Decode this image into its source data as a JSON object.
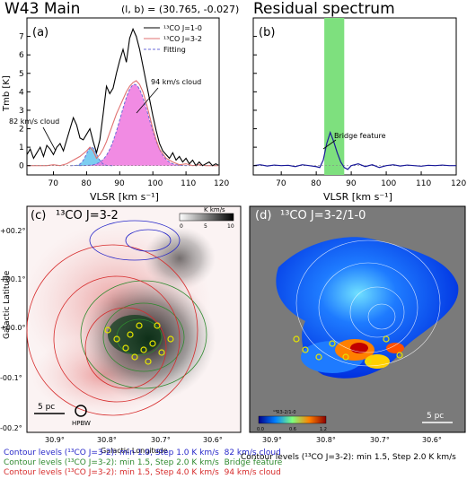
{
  "header": {
    "left_title": "W43 Main",
    "coords": "(l, b) = (30.765, -0.027)",
    "right_title": "Residual spectrum"
  },
  "chart_data": [
    {
      "type": "line",
      "panel": "(a)",
      "xlabel": "VLSR [km s⁻¹]",
      "ylabel": "Tmb [K]",
      "xlim": [
        62,
        120
      ],
      "ylim": [
        -0.5,
        8.0
      ],
      "xticks": [
        "70",
        "80",
        "90",
        "100",
        "110",
        "120"
      ],
      "yticks": [
        "0",
        "1",
        "2",
        "3",
        "4",
        "5",
        "6",
        "7"
      ],
      "legend": [
        "¹³CO J=1-0",
        "¹³CO J=3-2",
        "Fitting"
      ],
      "legend_position": "top-right",
      "annotations": [
        "82 km/s cloud",
        "94 km/s cloud"
      ],
      "series": [
        {
          "name": "¹³CO J=1-0",
          "color": "#000000",
          "x": [
            62,
            63,
            64,
            65,
            66,
            67,
            68,
            69,
            70,
            71,
            72,
            73,
            74,
            75,
            76,
            77,
            78,
            79,
            80,
            81,
            82,
            83,
            84,
            85,
            86,
            87,
            88,
            89,
            90,
            91,
            92,
            93,
            94,
            95,
            96,
            97,
            98,
            99,
            100,
            101,
            102,
            103,
            104,
            105,
            106,
            107,
            108,
            109,
            110,
            111,
            112,
            113,
            114,
            115,
            116,
            117,
            118,
            119,
            120
          ],
          "y": [
            0.6,
            0.9,
            0.4,
            0.7,
            1.0,
            0.5,
            1.1,
            0.9,
            0.6,
            1.0,
            1.2,
            0.8,
            1.4,
            2.0,
            2.6,
            2.2,
            1.5,
            1.4,
            1.7,
            2.0,
            1.3,
            0.7,
            1.4,
            2.8,
            4.3,
            3.9,
            4.2,
            5.0,
            5.7,
            6.3,
            5.6,
            6.9,
            7.4,
            7.0,
            6.3,
            5.4,
            4.5,
            3.6,
            2.7,
            1.9,
            1.2,
            0.8,
            0.6,
            0.4,
            0.7,
            0.3,
            0.5,
            0.2,
            0.4,
            0.1,
            0.3,
            0.0,
            0.2,
            0.0,
            0.1,
            0.2,
            0.0,
            0.1,
            0.0
          ]
        },
        {
          "name": "¹³CO J=3-2",
          "color": "#e07070",
          "x": [
            62,
            64,
            66,
            68,
            70,
            72,
            74,
            76,
            78,
            80,
            81,
            82,
            83,
            84,
            85,
            86,
            87,
            88,
            89,
            90,
            91,
            92,
            93,
            94,
            95,
            96,
            97,
            98,
            99,
            100,
            101,
            102,
            104,
            106,
            108,
            110,
            112,
            114,
            116,
            118,
            120
          ],
          "y": [
            0.0,
            0.0,
            0.0,
            0.0,
            0.05,
            0.0,
            0.1,
            0.3,
            0.5,
            0.8,
            1.0,
            0.8,
            0.4,
            0.6,
            0.9,
            1.3,
            1.8,
            2.3,
            2.8,
            3.2,
            3.6,
            4.0,
            4.3,
            4.5,
            4.6,
            4.4,
            4.0,
            3.4,
            2.7,
            2.0,
            1.4,
            0.9,
            0.4,
            0.2,
            0.05,
            0.1,
            0.0,
            0.05,
            0.0,
            0.0,
            0.0
          ]
        },
        {
          "name": "Fitting",
          "color": "#6a6ad8",
          "components": [
            {
              "label": "82 km/s cloud",
              "center": 81.5,
              "amplitude": 1.0,
              "sigma": 1.6,
              "fill": "#6ec8ef"
            },
            {
              "label": "94 km/s cloud",
              "center": 94.5,
              "amplitude": 4.4,
              "sigma": 4.2,
              "fill": "#f07ee0"
            }
          ]
        }
      ]
    },
    {
      "type": "line",
      "panel": "(b)",
      "xlabel": "VLSR [km s⁻¹]",
      "xlim": [
        62,
        120
      ],
      "ylim": [
        -0.5,
        8.0
      ],
      "xticks": [
        "70",
        "80",
        "90",
        "100",
        "110",
        "120"
      ],
      "yticks": [
        "0",
        "1",
        "2",
        "3",
        "4",
        "5",
        "6",
        "7"
      ],
      "highlight_range": [
        82.3,
        88.0
      ],
      "annotations": [
        "Bridge feature"
      ],
      "series": [
        {
          "name": "Residual",
          "color": "#1a1a99",
          "x": [
            62,
            64,
            66,
            68,
            70,
            72,
            74,
            76,
            78,
            80,
            81,
            82,
            83,
            84,
            85,
            86,
            87,
            88,
            89,
            90,
            92,
            94,
            96,
            98,
            100,
            102,
            104,
            106,
            108,
            110,
            112,
            114,
            116,
            118,
            120
          ],
          "y": [
            0.0,
            0.05,
            -0.02,
            0.03,
            0.0,
            0.02,
            -0.05,
            0.05,
            0.0,
            -0.05,
            -0.1,
            0.3,
            1.2,
            1.8,
            1.3,
            0.7,
            0.2,
            -0.1,
            -0.2,
            0.0,
            0.1,
            -0.05,
            0.05,
            -0.1,
            0.0,
            0.05,
            -0.02,
            0.03,
            0.0,
            -0.03,
            0.02,
            0.0,
            0.03,
            0.0,
            0.0
          ]
        }
      ]
    },
    {
      "type": "heatmap",
      "panel": "(c)",
      "title": "¹³CO J=3-2",
      "xlabel": "Galactic Longitude",
      "ylabel": "Galactic Latitude",
      "xticks": [
        "30.9°",
        "30.8°",
        "30.7°",
        "30.6°"
      ],
      "yticks": [
        "+00.2°",
        "+00.1°",
        "+00.0°",
        "-00.1°",
        "-00.2°"
      ],
      "colorbar_label": "K km/s",
      "colorbar_ticks": [
        "0",
        "5",
        "10"
      ],
      "scalebar": "5 pc",
      "beam": "HPBW"
    },
    {
      "type": "heatmap",
      "panel": "(d)",
      "title": "¹³CO J=3-2/1-0",
      "xticks": [
        "30.9°",
        "30.8°",
        "30.7°",
        "30.6°"
      ],
      "colorbar_label": "¹³R3-2/1-0",
      "colorbar_ticks": [
        "0.0",
        "0.6",
        "1.2"
      ],
      "scalebar": "5 pc"
    }
  ],
  "captions": {
    "left": [
      {
        "text": "Contour levels (¹³CO J=3-2): min 1.0, Step 1.0 K km/s",
        "tag": "82 km/s cloud",
        "color": "#2727c9"
      },
      {
        "text": "Contour levels (¹³CO J=3-2): min 1.5, Step 2.0 K km/s",
        "tag": "Bridge feature",
        "color": "#2f8a2f"
      },
      {
        "text": "Contour levels (¹³CO J=3-2): min 1.5, Step 4.0 K km/s",
        "tag": "94 km/s cloud",
        "color": "#d62b2b"
      }
    ],
    "right": "Contour levels (¹³CO J=3-2): min 1.5, Step 2.0 K km/s"
  }
}
